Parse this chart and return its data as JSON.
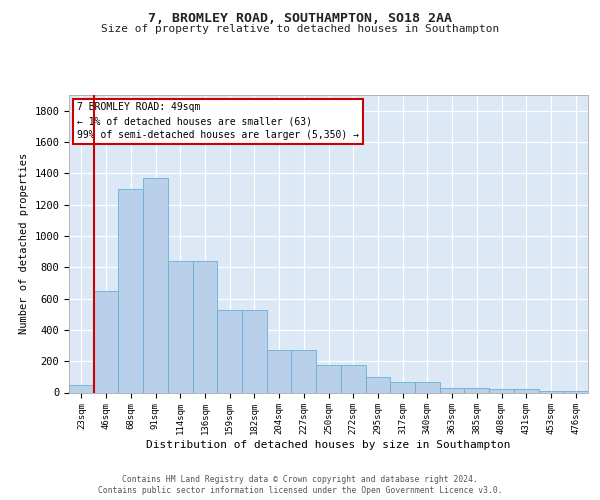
{
  "title1": "7, BROMLEY ROAD, SOUTHAMPTON, SO18 2AA",
  "title2": "Size of property relative to detached houses in Southampton",
  "xlabel": "Distribution of detached houses by size in Southampton",
  "ylabel": "Number of detached properties",
  "categories": [
    "23sqm",
    "46sqm",
    "68sqm",
    "91sqm",
    "114sqm",
    "136sqm",
    "159sqm",
    "182sqm",
    "204sqm",
    "227sqm",
    "250sqm",
    "272sqm",
    "295sqm",
    "317sqm",
    "340sqm",
    "363sqm",
    "385sqm",
    "408sqm",
    "431sqm",
    "453sqm",
    "476sqm"
  ],
  "values": [
    50,
    650,
    1300,
    1370,
    840,
    840,
    525,
    525,
    270,
    270,
    175,
    175,
    100,
    65,
    65,
    30,
    30,
    25,
    20,
    10,
    10
  ],
  "bar_color": "#b8d0ea",
  "bar_edge_color": "#6baed6",
  "annotation_box_color": "#ffffff",
  "annotation_border_color": "#cc0000",
  "vline_color": "#cc0000",
  "annotation_text_line1": "7 BROMLEY ROAD: 49sqm",
  "annotation_text_line2": "← 1% of detached houses are smaller (63)",
  "annotation_text_line3": "99% of semi-detached houses are larger (5,350) →",
  "vline_x_index": 1,
  "ylim": [
    0,
    1900
  ],
  "yticks": [
    0,
    200,
    400,
    600,
    800,
    1000,
    1200,
    1400,
    1600,
    1800
  ],
  "footer1": "Contains HM Land Registry data © Crown copyright and database right 2024.",
  "footer2": "Contains public sector information licensed under the Open Government Licence v3.0.",
  "bg_color": "#dce8f5",
  "fig_bg_color": "#ffffff"
}
